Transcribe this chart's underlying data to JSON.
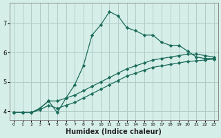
{
  "xlabel": "Humidex (Indice chaleur)",
  "bg_color": "#d6eee8",
  "grid_color": "#b0ccc8",
  "line_color": "#1a6b5a",
  "xlim": [
    -0.5,
    23.5
  ],
  "ylim": [
    3.7,
    7.7
  ],
  "xticks": [
    0,
    1,
    2,
    3,
    4,
    5,
    6,
    7,
    8,
    9,
    10,
    11,
    12,
    13,
    14,
    15,
    16,
    17,
    18,
    19,
    20,
    21,
    22,
    23
  ],
  "yticks": [
    4,
    5,
    6,
    7
  ],
  "series1_x": [
    0,
    1,
    2,
    3,
    4,
    5,
    6,
    7,
    8,
    9,
    10,
    11,
    12,
    13,
    14,
    15,
    16,
    17,
    18,
    19,
    20,
    21,
    22,
    23
  ],
  "series1_y": [
    3.95,
    3.95,
    3.95,
    4.1,
    4.35,
    3.95,
    4.45,
    4.9,
    5.55,
    6.6,
    6.95,
    7.4,
    7.25,
    6.85,
    6.75,
    6.6,
    6.6,
    6.35,
    6.25,
    6.25,
    6.05,
    5.85,
    5.8,
    5.8
  ],
  "series2_x": [
    0,
    1,
    2,
    3,
    4,
    5,
    6,
    7,
    8,
    9,
    10,
    11,
    12,
    13,
    14,
    15,
    16,
    17,
    18,
    19,
    20,
    21,
    22,
    23
  ],
  "series2_y": [
    3.95,
    3.95,
    3.95,
    4.1,
    4.35,
    4.35,
    4.45,
    4.55,
    4.7,
    4.85,
    5.0,
    5.15,
    5.3,
    5.45,
    5.55,
    5.65,
    5.75,
    5.8,
    5.85,
    5.9,
    5.95,
    5.95,
    5.9,
    5.85
  ],
  "series3_x": [
    0,
    1,
    2,
    3,
    4,
    5,
    6,
    7,
    8,
    9,
    10,
    11,
    12,
    13,
    14,
    15,
    16,
    17,
    18,
    19,
    20,
    21,
    22,
    23
  ],
  "series3_y": [
    3.95,
    3.95,
    3.95,
    4.05,
    4.2,
    4.1,
    4.2,
    4.3,
    4.45,
    4.6,
    4.75,
    4.9,
    5.05,
    5.2,
    5.3,
    5.4,
    5.5,
    5.55,
    5.6,
    5.65,
    5.7,
    5.72,
    5.75,
    5.78
  ]
}
